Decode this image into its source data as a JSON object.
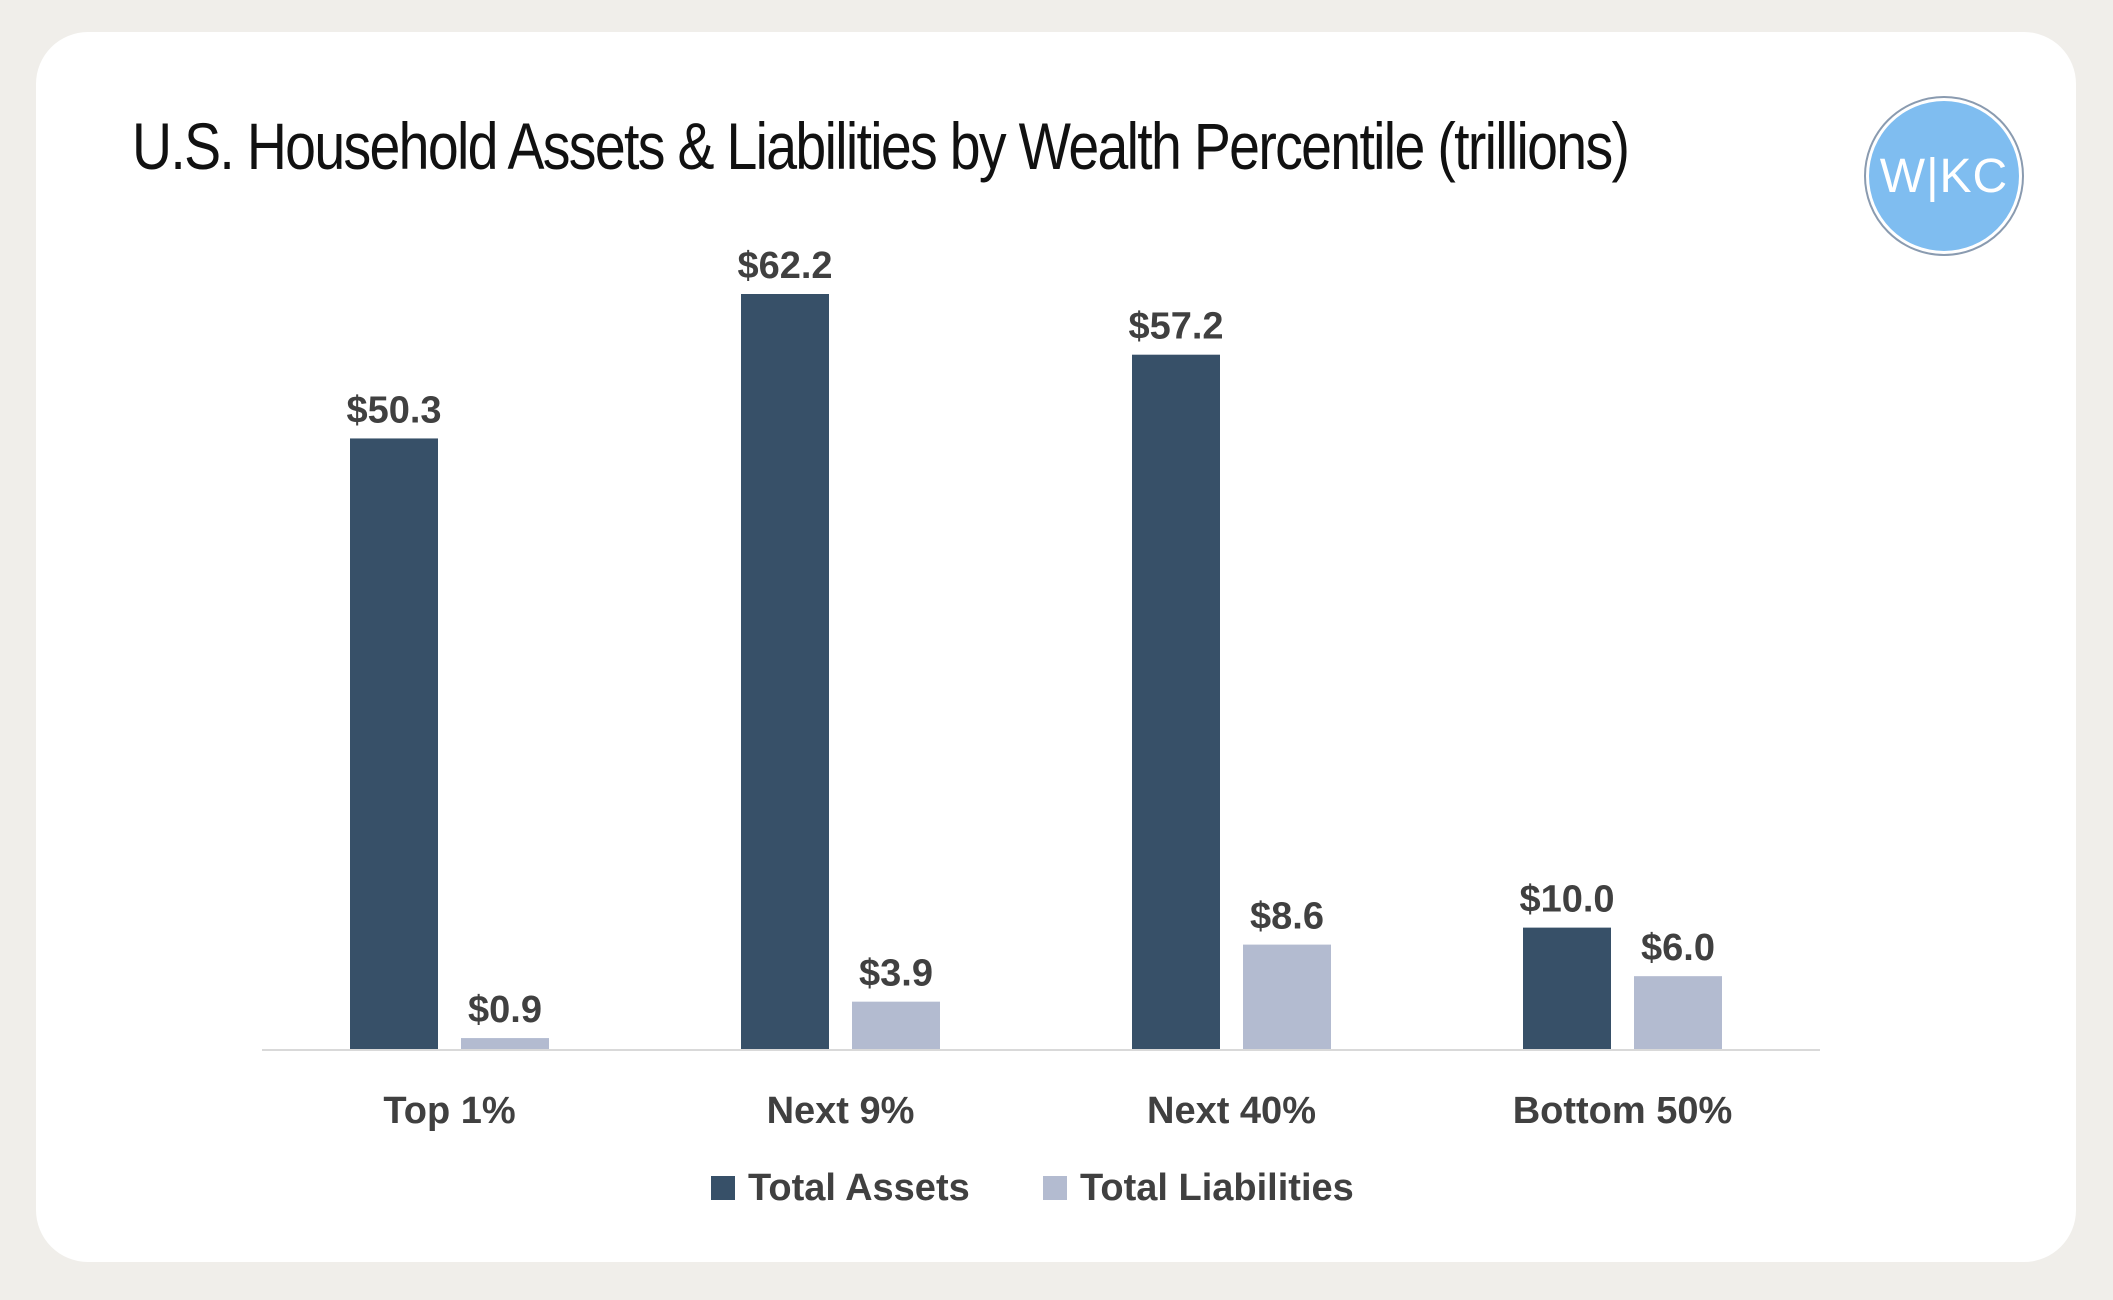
{
  "logo": {
    "text": "W|KC"
  },
  "chart_data": {
    "type": "bar",
    "title": "U.S. Household Assets & Liabilities by Wealth Percentile (trillions)",
    "categories": [
      "Top 1%",
      "Next 9%",
      "Next 40%",
      "Bottom 50%"
    ],
    "series": [
      {
        "name": "Total Assets",
        "values": [
          50.3,
          62.2,
          57.2,
          10.0
        ],
        "labels": [
          "$50.3",
          "$62.2",
          "$57.2",
          "$10.0"
        ],
        "color": "#375068"
      },
      {
        "name": "Total Liabilities",
        "values": [
          0.9,
          3.9,
          8.6,
          6.0
        ],
        "labels": [
          "$0.9",
          "$3.9",
          "$8.6",
          "$6.0"
        ],
        "color": "#b3bbd0"
      }
    ],
    "ylim": [
      0,
      70
    ],
    "grid": false,
    "legend": "bottom-center",
    "xlabel": "",
    "ylabel": ""
  },
  "colors": {
    "axis": "#d9d9d9",
    "label": "#404040",
    "logo_bg": "#7fbdf0"
  }
}
